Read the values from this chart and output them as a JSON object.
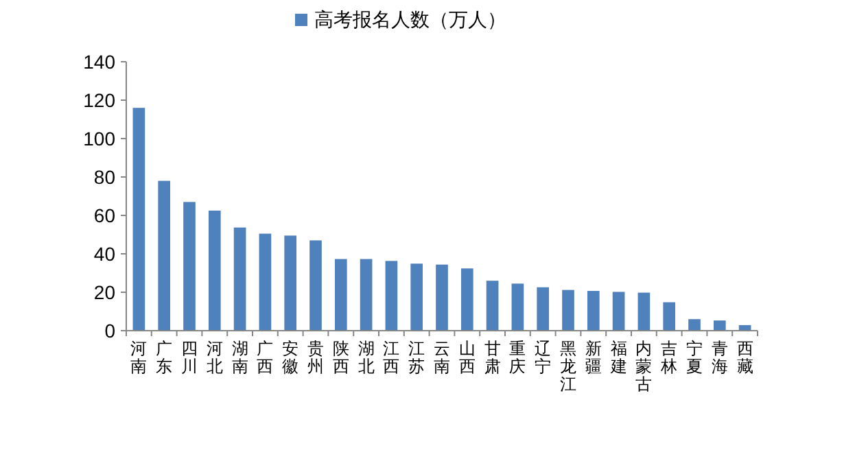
{
  "chart_data": {
    "type": "bar",
    "categories": [
      "河南",
      "广东",
      "四川",
      "河北",
      "湖南",
      "广西",
      "安徽",
      "贵州",
      "陕西",
      "湖北",
      "江西",
      "江苏",
      "云南",
      "山西",
      "甘肃",
      "重庆",
      "辽宁",
      "黑龙江",
      "新疆",
      "福建",
      "内蒙古",
      "吉林",
      "宁夏",
      "青海",
      "西藏"
    ],
    "series": [
      {
        "name": "高考报名人数（万人）",
        "color": "#4f81bd",
        "values": [
          116,
          78,
          67,
          62.5,
          53.7,
          50.5,
          49.5,
          47,
          37.3,
          37.3,
          36.3,
          34.9,
          34.4,
          32.4,
          26,
          24.5,
          22.6,
          21.2,
          20.7,
          20.2,
          19.8,
          14.8,
          6,
          5.3,
          2.9
        ]
      }
    ],
    "ylim": [
      0,
      140
    ],
    "yticks": [
      0,
      20,
      40,
      60,
      80,
      100,
      120,
      140
    ],
    "grid": false,
    "legend": "top"
  }
}
